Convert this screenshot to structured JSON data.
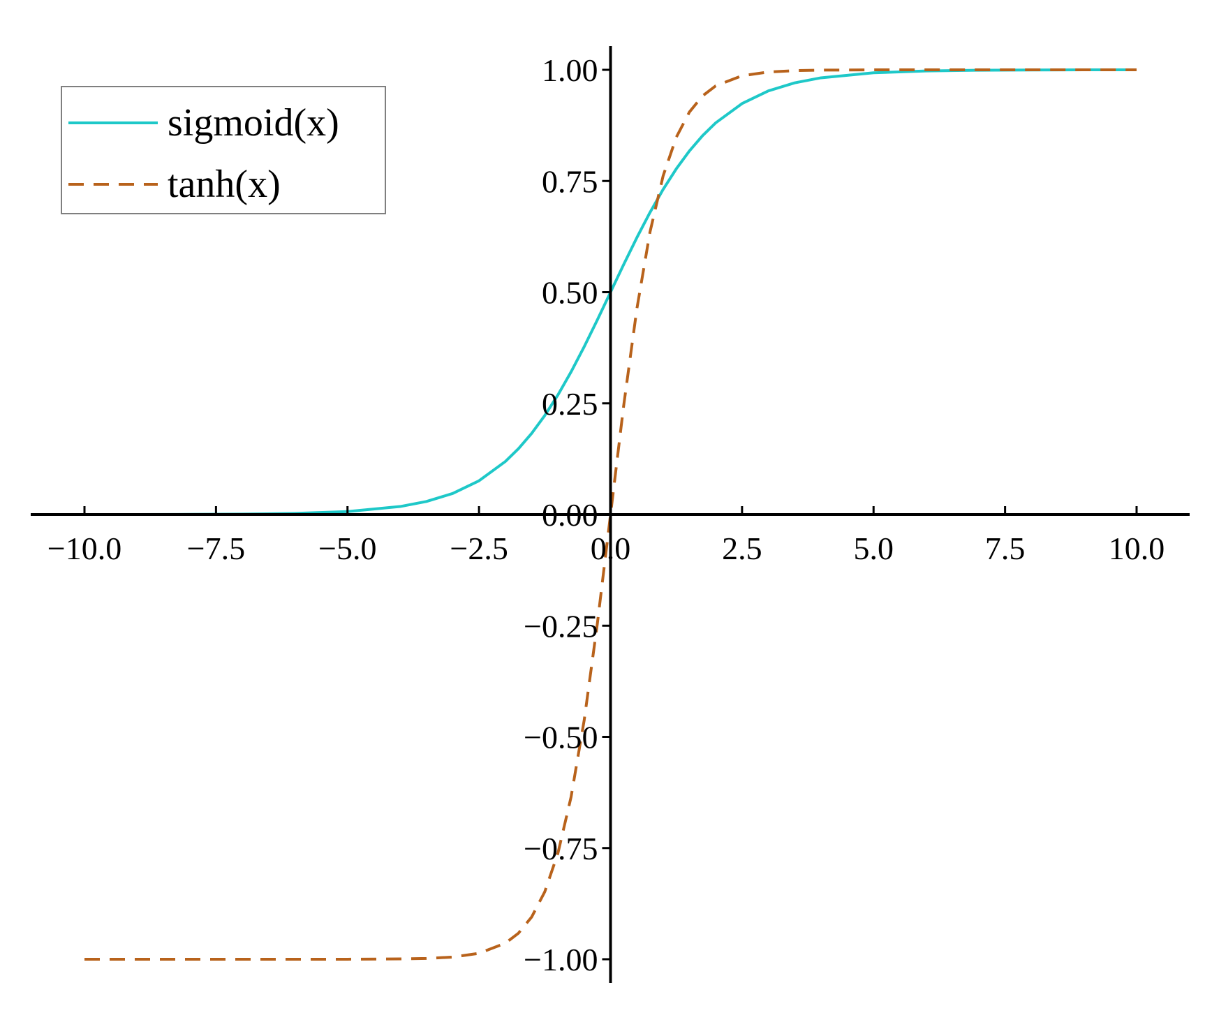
{
  "chart_data": {
    "type": "line",
    "title": "",
    "xlabel": "",
    "ylabel": "",
    "xlim": [
      -10.0,
      10.0
    ],
    "ylim": [
      -1.0,
      1.0
    ],
    "grid": false,
    "spines": "centered",
    "legend_position": "top-left",
    "x_ticks": [
      -10.0,
      -7.5,
      -5.0,
      -2.5,
      0.0,
      2.5,
      5.0,
      7.5,
      10.0
    ],
    "x_tick_labels": [
      "−10.0",
      "−7.5",
      "−5.0",
      "−2.5",
      "0.0",
      "2.5",
      "5.0",
      "7.5",
      "10.0"
    ],
    "y_ticks": [
      -1.0,
      -0.75,
      -0.5,
      -0.25,
      0.0,
      0.25,
      0.5,
      0.75,
      1.0
    ],
    "y_tick_labels": [
      "−1.00",
      "−0.75",
      "−0.50",
      "−0.25",
      "0.00",
      "0.25",
      "0.50",
      "0.75",
      "1.00"
    ],
    "x": [
      -10,
      -9,
      -8,
      -7,
      -6,
      -5,
      -4,
      -3.5,
      -3,
      -2.5,
      -2,
      -1.75,
      -1.5,
      -1.25,
      -1,
      -0.75,
      -0.5,
      -0.25,
      0,
      0.25,
      0.5,
      0.75,
      1,
      1.25,
      1.5,
      1.75,
      2,
      2.5,
      3,
      3.5,
      4,
      5,
      6,
      7,
      8,
      9,
      10
    ],
    "series": [
      {
        "name": "sigmoid(x)",
        "color": "#1ec8c8",
        "style": "solid",
        "values": [
          0.0,
          0.0001,
          0.0003,
          0.0009,
          0.0025,
          0.0067,
          0.018,
          0.0293,
          0.0474,
          0.0759,
          0.1192,
          0.148,
          0.1824,
          0.2227,
          0.2689,
          0.3208,
          0.3775,
          0.4378,
          0.5,
          0.5622,
          0.6225,
          0.6792,
          0.7311,
          0.7773,
          0.8176,
          0.852,
          0.8808,
          0.9241,
          0.9526,
          0.9707,
          0.982,
          0.9933,
          0.9975,
          0.9991,
          0.9997,
          0.9999,
          1.0
        ]
      },
      {
        "name": "tanh(x)",
        "color": "#b8621b",
        "style": "dashed",
        "values": [
          -1.0,
          -1.0,
          -1.0,
          -1.0,
          -1.0,
          -0.9999,
          -0.9993,
          -0.9982,
          -0.9951,
          -0.9866,
          -0.964,
          -0.9414,
          -0.9051,
          -0.8483,
          -0.7616,
          -0.6351,
          -0.4621,
          -0.2449,
          0.0,
          0.2449,
          0.4621,
          0.6351,
          0.7616,
          0.8483,
          0.9051,
          0.9414,
          0.964,
          0.9866,
          0.9951,
          0.9982,
          0.9993,
          0.9999,
          1.0,
          1.0,
          1.0,
          1.0,
          1.0
        ]
      }
    ]
  }
}
